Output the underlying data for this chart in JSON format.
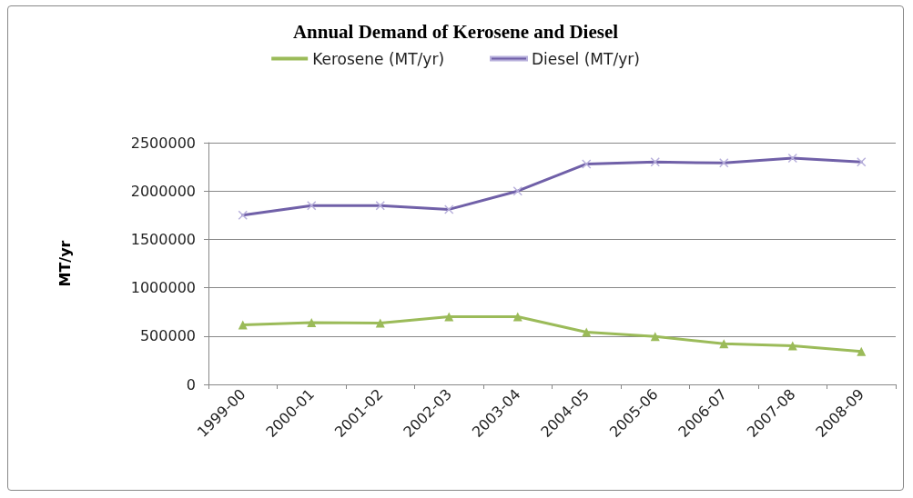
{
  "chart_data": {
    "type": "line",
    "title": "Annual Demand of Kerosene and Diesel",
    "ylabel": "MT/yr",
    "categories": [
      "1999-00",
      "2000-01",
      "2001-02",
      "2002-03",
      "2003-04",
      "2004-05",
      "2005-06",
      "2006-07",
      "2007-08",
      "2008-09"
    ],
    "series": [
      {
        "name": "Kerosene (MT/yr)",
        "color": "#9bbb59",
        "marker": "triangle",
        "values": [
          615000,
          640000,
          635000,
          700000,
          700000,
          540000,
          495000,
          420000,
          400000,
          340000
        ]
      },
      {
        "name": "Diesel (MT/yr)",
        "color": "#7060a8",
        "marker": "cross",
        "values": [
          1750000,
          1850000,
          1850000,
          1810000,
          2000000,
          2280000,
          2300000,
          2290000,
          2340000,
          2300000
        ]
      }
    ],
    "ylim": [
      0,
      2500000
    ],
    "yticks": [
      0,
      500000,
      1000000,
      1500000,
      2000000,
      2500000
    ],
    "grid": "y",
    "legend": "top",
    "line_style": "solid"
  }
}
